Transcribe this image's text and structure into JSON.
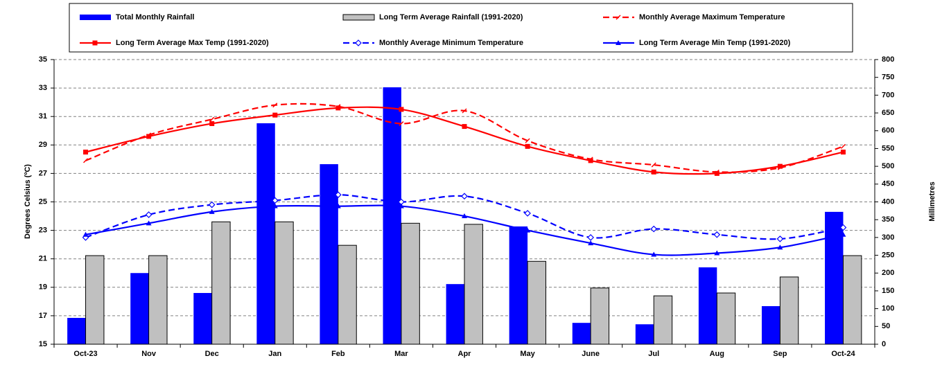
{
  "chart_data": {
    "type": "combo",
    "categories": [
      "Oct-23",
      "Nov",
      "Dec",
      "Jan",
      "Feb",
      "Mar",
      "Apr",
      "May",
      "June",
      "Jul",
      "Aug",
      "Sep",
      "Oct-24"
    ],
    "y_label": "Degrees Celsius (ºC)",
    "y2_label": "Millimetres",
    "ylim": [
      15,
      35
    ],
    "yticks": [
      15,
      17,
      19,
      21,
      23,
      25,
      27,
      29,
      31,
      33,
      35
    ],
    "y2lim": [
      0,
      800
    ],
    "y2ticks": [
      0,
      50,
      100,
      150,
      200,
      250,
      300,
      350,
      400,
      450,
      500,
      550,
      600,
      650,
      700,
      750,
      800
    ],
    "grid": true,
    "series": [
      {
        "name": "Total Monthly Rainfall",
        "type": "bar",
        "axis": "y2",
        "color": "#0000ff",
        "values": [
          74,
          200,
          144,
          621,
          506,
          722,
          169,
          331,
          60,
          56,
          216,
          107,
          372
        ]
      },
      {
        "name": "Long Term Average Rainfall (1991-2020)",
        "type": "bar",
        "axis": "y2",
        "color": "#c0c0c0",
        "values": [
          249,
          249,
          344,
          344,
          278,
          340,
          337,
          233,
          158,
          136,
          144,
          189,
          249
        ]
      },
      {
        "name": "Monthly Average Maximum Temperature",
        "type": "line",
        "color": "#ff0000",
        "dash": true,
        "marker": "tick",
        "values": [
          27.9,
          29.7,
          30.8,
          31.8,
          31.7,
          30.5,
          31.4,
          29.3,
          28.0,
          27.6,
          27.1,
          27.4,
          28.9
        ]
      },
      {
        "name": "Long Term Average Max Temp (1991-2020)",
        "type": "line",
        "color": "#ff0000",
        "dash": false,
        "marker": "square",
        "values": [
          28.5,
          29.6,
          30.5,
          31.1,
          31.6,
          31.5,
          30.3,
          28.9,
          27.9,
          27.1,
          27.0,
          27.5,
          28.5
        ]
      },
      {
        "name": "Monthly Average Minimum Temperature",
        "type": "line",
        "color": "#0000ff",
        "dash": true,
        "marker": "diamond",
        "values": [
          22.5,
          24.1,
          24.8,
          25.1,
          25.5,
          25.0,
          25.4,
          24.2,
          22.5,
          23.1,
          22.7,
          22.4,
          23.2
        ]
      },
      {
        "name": "Long Term Average Min Temp (1991-2020)",
        "type": "line",
        "color": "#0000ff",
        "dash": false,
        "marker": "triangle",
        "values": [
          22.7,
          23.5,
          24.3,
          24.7,
          24.7,
          24.7,
          24.0,
          23.0,
          22.1,
          21.3,
          21.4,
          21.8,
          22.7
        ]
      }
    ]
  }
}
